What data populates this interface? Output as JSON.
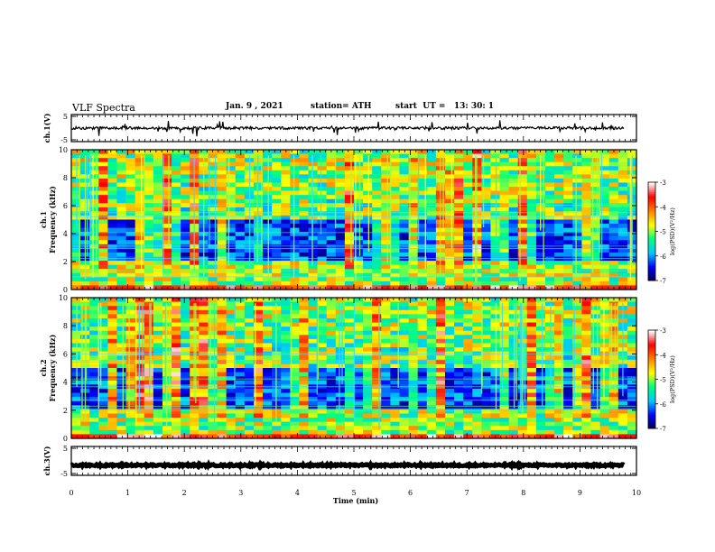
{
  "header": {
    "title": "VLF Spectra",
    "date": "Jan. 9 , 2021",
    "station": "station= ATH",
    "start": "start  UT =   13: 30: 1"
  },
  "chart_data": [
    {
      "type": "line",
      "panel": "ch1-waveform",
      "ylabel": "ch.1(V)",
      "ylim": [
        -5,
        5
      ],
      "yticks": [
        "5",
        "-5"
      ],
      "xlim": [
        0,
        10
      ],
      "color": "#000000",
      "trace": {
        "baseline": 0,
        "noise_amplitude": 0.5,
        "spike_amplitude": 3
      }
    },
    {
      "type": "heatmap",
      "panel": "ch1-spectrogram",
      "ylabel": "ch.1\nFrequency (kHz)",
      "ylim": [
        0,
        10
      ],
      "yticks": [
        "0",
        "2",
        "4",
        "6",
        "8",
        "10"
      ],
      "xlim": [
        0,
        10
      ],
      "colorbar": {
        "label": "log(PSD)(V²/Hz)",
        "ticks": [
          "-3",
          "-4",
          "-5",
          "-6",
          "-7"
        ],
        "range": [
          -7,
          -3
        ]
      },
      "colorscale": [
        "#00004a",
        "#0000ff",
        "#00c8ff",
        "#00ff80",
        "#ffff00",
        "#ff8000",
        "#ff0000",
        "#ffffff"
      ]
    },
    {
      "type": "heatmap",
      "panel": "ch2-spectrogram",
      "ylabel": "ch.2\nFrequency (kHz)",
      "ylim": [
        0,
        10
      ],
      "yticks": [
        "0",
        "2",
        "4",
        "6",
        "8",
        "10"
      ],
      "xlim": [
        0,
        10
      ],
      "colorbar": {
        "label": "log(PSD)(V²/Hz)",
        "ticks": [
          "-3",
          "-4",
          "-5",
          "-6",
          "-7"
        ],
        "range": [
          -7,
          -3
        ]
      },
      "colorscale": [
        "#00004a",
        "#0000ff",
        "#00c8ff",
        "#00ff80",
        "#ffff00",
        "#ff8000",
        "#ff0000",
        "#ffffff"
      ]
    },
    {
      "type": "line",
      "panel": "ch3-waveform",
      "ylabel": "ch.3(V)",
      "ylim": [
        -5,
        5
      ],
      "yticks": [
        "5",
        "-5"
      ],
      "xlim": [
        0,
        10
      ],
      "xlabel": "Time (min)",
      "xticks": [
        "0",
        "1",
        "2",
        "3",
        "4",
        "5",
        "6",
        "7",
        "8",
        "9",
        "10"
      ],
      "color": "#000000",
      "trace": {
        "baseline": -1.5,
        "noise_amplitude": 0.3
      }
    }
  ]
}
